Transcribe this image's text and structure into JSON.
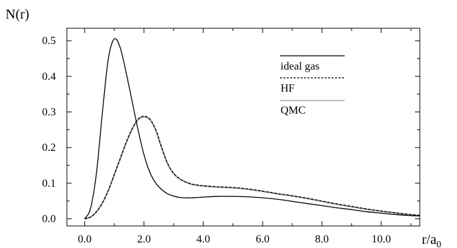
{
  "chart_data": {
    "type": "line",
    "ylabel": "N(r)",
    "xlabel_main": "r/a",
    "xlabel_sub": "0",
    "xlim": [
      -0.6,
      11.3
    ],
    "ylim": [
      -0.02,
      0.535
    ],
    "x_ticks": [
      "0.0",
      "2.0",
      "4.0",
      "6.0",
      "8.0",
      "10.0"
    ],
    "x_tick_values": [
      0,
      2,
      4,
      6,
      8,
      10
    ],
    "y_ticks": [
      "0.0",
      "0.1",
      "0.2",
      "0.3",
      "0.4",
      "0.5"
    ],
    "y_tick_values": [
      0,
      0.1,
      0.2,
      0.3,
      0.4,
      0.5
    ],
    "legend": [
      "ideal gas",
      "HF",
      "QMC"
    ],
    "series": [
      {
        "name": "ideal gas",
        "style": "solid",
        "color": "#000000",
        "x": [
          0.0,
          0.2,
          0.4,
          0.6,
          0.8,
          1.0,
          1.2,
          1.4,
          1.6,
          1.8,
          2.0,
          2.2,
          2.4,
          2.6,
          2.8,
          3.0,
          3.2,
          3.4,
          3.6,
          3.8,
          4.0,
          4.5,
          5.0,
          5.5,
          6.0,
          6.5,
          7.0,
          7.5,
          8.0,
          8.5,
          9.0,
          9.5,
          10.0,
          10.5,
          11.0,
          11.3
        ],
        "y": [
          0.0,
          0.03,
          0.13,
          0.3,
          0.45,
          0.505,
          0.48,
          0.41,
          0.33,
          0.25,
          0.18,
          0.13,
          0.1,
          0.082,
          0.07,
          0.064,
          0.06,
          0.059,
          0.059,
          0.06,
          0.061,
          0.063,
          0.063,
          0.062,
          0.059,
          0.055,
          0.049,
          0.043,
          0.037,
          0.031,
          0.026,
          0.02,
          0.016,
          0.012,
          0.009,
          0.008
        ]
      },
      {
        "name": "HF",
        "style": "dashed",
        "color": "#000000",
        "x": [
          0.0,
          0.2,
          0.4,
          0.6,
          0.8,
          1.0,
          1.2,
          1.4,
          1.6,
          1.8,
          2.0,
          2.2,
          2.4,
          2.6,
          2.8,
          3.0,
          3.2,
          3.4,
          3.6,
          3.8,
          4.0,
          4.5,
          5.0,
          5.5,
          6.0,
          6.5,
          7.0,
          7.5,
          8.0,
          8.5,
          9.0,
          9.5,
          10.0,
          10.5,
          11.0,
          11.3
        ],
        "y": [
          0.0,
          0.005,
          0.02,
          0.045,
          0.08,
          0.125,
          0.17,
          0.215,
          0.253,
          0.28,
          0.288,
          0.28,
          0.25,
          0.2,
          0.155,
          0.128,
          0.113,
          0.104,
          0.098,
          0.095,
          0.093,
          0.09,
          0.088,
          0.084,
          0.078,
          0.071,
          0.065,
          0.058,
          0.05,
          0.042,
          0.035,
          0.028,
          0.022,
          0.017,
          0.012,
          0.01
        ]
      },
      {
        "name": "QMC",
        "style": "solid",
        "color": "#999999",
        "x": [
          0.0,
          0.2,
          0.4,
          0.6,
          0.8,
          1.0,
          1.2,
          1.4,
          1.6,
          1.8,
          2.0,
          2.2,
          2.4,
          2.6,
          2.8,
          3.0,
          3.2,
          3.4,
          3.6,
          3.8,
          4.0,
          4.5,
          5.0,
          5.5,
          6.0,
          6.5,
          7.0,
          7.5,
          8.0,
          8.5,
          9.0,
          9.5,
          10.0,
          10.5,
          11.0,
          11.3
        ],
        "y": [
          0.0,
          0.005,
          0.02,
          0.045,
          0.08,
          0.124,
          0.168,
          0.213,
          0.251,
          0.278,
          0.286,
          0.278,
          0.248,
          0.198,
          0.154,
          0.127,
          0.112,
          0.103,
          0.097,
          0.094,
          0.092,
          0.089,
          0.087,
          0.083,
          0.077,
          0.07,
          0.064,
          0.057,
          0.049,
          0.041,
          0.034,
          0.027,
          0.021,
          0.016,
          0.011,
          0.009
        ]
      }
    ]
  }
}
